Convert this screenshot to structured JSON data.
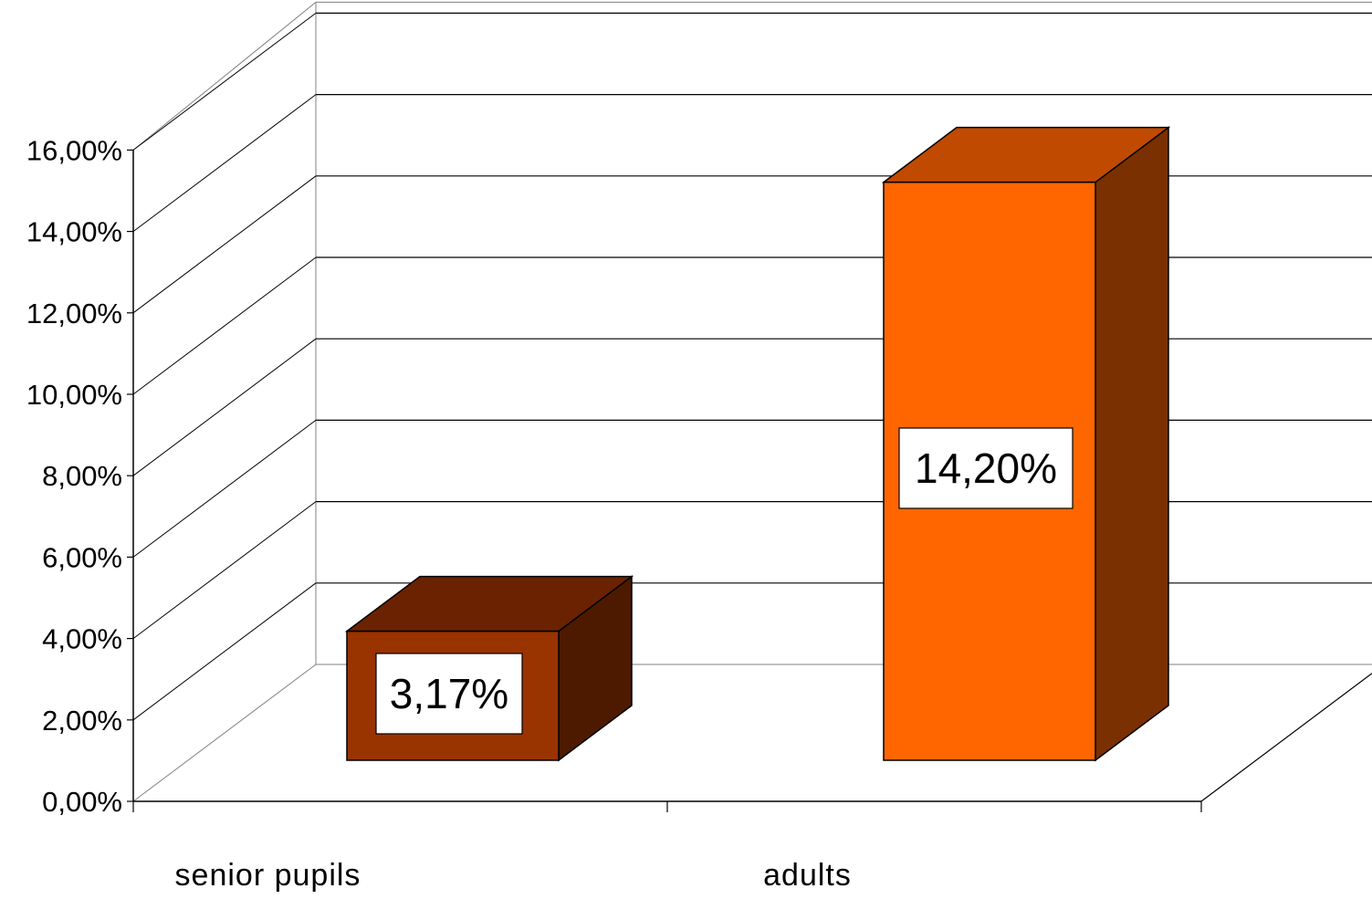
{
  "chart_data": {
    "type": "bar",
    "three_d": true,
    "title": "",
    "xlabel": "",
    "ylabel": "",
    "categories": [
      "senior pupils",
      "adults"
    ],
    "values": [
      3.17,
      14.2
    ],
    "value_labels": [
      "3,17%",
      "14,20%"
    ],
    "ylim": [
      0,
      16
    ],
    "ytick_labels": [
      "0,00%",
      "2,00%",
      "4,00%",
      "6,00%",
      "8,00%",
      "10,00%",
      "12,00%",
      "14,00%",
      "16,00%"
    ],
    "grid": true,
    "legend": "none",
    "bar_colors": [
      {
        "front": "#993300",
        "top": "#6b2200",
        "side": "#4d1a00"
      },
      {
        "front": "#ff6600",
        "top": "#c04a00",
        "side": "#7a3000"
      }
    ],
    "gridline_color": "#000000",
    "wall_line_color": "#808080"
  }
}
